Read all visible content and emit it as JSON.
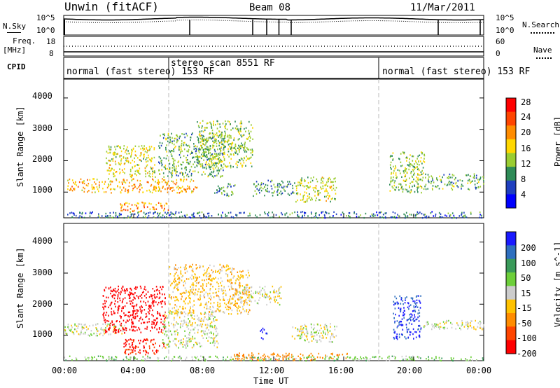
{
  "header": {
    "station": "Unwin (fitACF)",
    "beam": "Beam 08",
    "date": "11/Mar/2011"
  },
  "nsky_panel": {
    "left_label": "N.Sky",
    "left_ticks": [
      "10^5",
      "10^0"
    ],
    "right_ticks": [
      "10^5",
      "10^0"
    ],
    "right_label": "N.Search"
  },
  "freq_panel": {
    "left_label_1": "Freq.",
    "left_label_2": "[MHz]",
    "left_ticks": [
      "18",
      "8"
    ],
    "right_ticks": [
      "60",
      "0"
    ],
    "right_label": "Nave"
  },
  "cpid_panel": {
    "label": "CPID",
    "segments": [
      {
        "text": "normal (fast stereo) 153 RF",
        "start_hour": 0
      },
      {
        "text": "stereo_scan 8551 RF",
        "start_hour": 6
      },
      {
        "text": "normal (fast stereo) 153 RF",
        "start_hour": 18
      }
    ]
  },
  "axes": {
    "ylabel": "Slant Range [km]",
    "xlabel": "Time UT",
    "yticks": [
      "1000",
      "2000",
      "3000",
      "4000"
    ],
    "xticks": [
      "00:00",
      "04:00",
      "08:00",
      "12:00",
      "16:00",
      "20:00",
      "00:00"
    ]
  },
  "power_scale": {
    "label": "Power [dB]",
    "ticks": [
      "28",
      "24",
      "20",
      "16",
      "12",
      "8",
      "4"
    ],
    "colors": [
      "#ff0000",
      "#ff4500",
      "#ff8c00",
      "#ffd700",
      "#9acd32",
      "#2e8b57",
      "#1f3fbf",
      "#0000ff"
    ]
  },
  "velocity_scale": {
    "label": "Velocity [m s^-1]",
    "ticks": [
      "200",
      "100",
      "50",
      "15",
      "-15",
      "-50",
      "-100",
      "-200"
    ],
    "colors": [
      "#1a1aff",
      "#2e6fbf",
      "#3a9a5a",
      "#6dcf3a",
      "#cccccc",
      "#ffc200",
      "#ff8c00",
      "#ff4500",
      "#ff0000"
    ]
  },
  "chart_data": [
    {
      "type": "heatmap",
      "title": "Power",
      "ylabel": "Slant Range [km]",
      "xlabel": "Time UT",
      "colorbar_label": "Power [dB]",
      "xlim_hours": [
        0,
        24
      ],
      "ylim_km": [
        180,
        4600
      ],
      "colorbar_ticks": [
        4,
        8,
        12,
        16,
        20,
        24,
        28
      ],
      "regions": [
        {
          "t0": 0.2,
          "t1": 7.6,
          "r0": 1000,
          "r1": 1450,
          "power": 18
        },
        {
          "t0": 2.4,
          "t1": 5.2,
          "r0": 1500,
          "r1": 2500,
          "power": 14
        },
        {
          "t0": 5.4,
          "t1": 9.2,
          "r0": 1500,
          "r1": 2900,
          "power": 10
        },
        {
          "t0": 7.6,
          "t1": 10.8,
          "r0": 1800,
          "r1": 3300,
          "power": 12
        },
        {
          "t0": 3.2,
          "t1": 6.0,
          "r0": 400,
          "r1": 700,
          "power": 20
        },
        {
          "t0": 8.6,
          "t1": 9.8,
          "r0": 900,
          "r1": 1300,
          "power": 8
        },
        {
          "t0": 10.8,
          "t1": 13.2,
          "r0": 900,
          "r1": 1400,
          "power": 8
        },
        {
          "t0": 13.2,
          "t1": 15.6,
          "r0": 700,
          "r1": 1500,
          "power": 14
        },
        {
          "t0": 18.6,
          "t1": 20.6,
          "r0": 1000,
          "r1": 2300,
          "power": 12
        },
        {
          "t0": 20.6,
          "t1": 24.0,
          "r0": 1100,
          "r1": 1600,
          "power": 10
        },
        {
          "t0": 0.0,
          "t1": 24.0,
          "r0": 200,
          "r1": 400,
          "power": 6
        }
      ]
    },
    {
      "type": "heatmap",
      "title": "Velocity",
      "ylabel": "Slant Range [km]",
      "xlabel": "Time UT",
      "colorbar_label": "Velocity [m s^-1]",
      "xlim_hours": [
        0,
        24
      ],
      "ylim_km": [
        180,
        4600
      ],
      "colorbar_ticks": [
        -200,
        -100,
        -50,
        -15,
        15,
        50,
        100,
        200
      ],
      "regions": [
        {
          "t0": 0.0,
          "t1": 3.6,
          "r0": 1000,
          "r1": 1400,
          "velocity": 0
        },
        {
          "t0": 2.2,
          "t1": 5.8,
          "r0": 1100,
          "r1": 2600,
          "velocity": -250
        },
        {
          "t0": 3.4,
          "t1": 5.8,
          "r0": 400,
          "r1": 900,
          "velocity": -200
        },
        {
          "t0": 5.6,
          "t1": 8.8,
          "r0": 600,
          "r1": 1800,
          "velocity": 0
        },
        {
          "t0": 6.0,
          "t1": 10.6,
          "r0": 1700,
          "r1": 3300,
          "velocity": -30
        },
        {
          "t0": 10.0,
          "t1": 12.4,
          "r0": 2000,
          "r1": 2600,
          "velocity": 0
        },
        {
          "t0": 11.2,
          "t1": 11.6,
          "r0": 900,
          "r1": 1300,
          "velocity": 220
        },
        {
          "t0": 13.0,
          "t1": 15.6,
          "r0": 800,
          "r1": 1400,
          "velocity": 0
        },
        {
          "t0": 9.6,
          "t1": 16.2,
          "r0": 200,
          "r1": 450,
          "velocity": -80
        },
        {
          "t0": 18.8,
          "t1": 20.4,
          "r0": 900,
          "r1": 2300,
          "velocity": 200
        },
        {
          "t0": 20.4,
          "t1": 24.0,
          "r0": 1200,
          "r1": 1500,
          "velocity": 0
        },
        {
          "t0": 0.0,
          "t1": 24.0,
          "r0": 200,
          "r1": 350,
          "velocity": 30
        }
      ]
    }
  ]
}
